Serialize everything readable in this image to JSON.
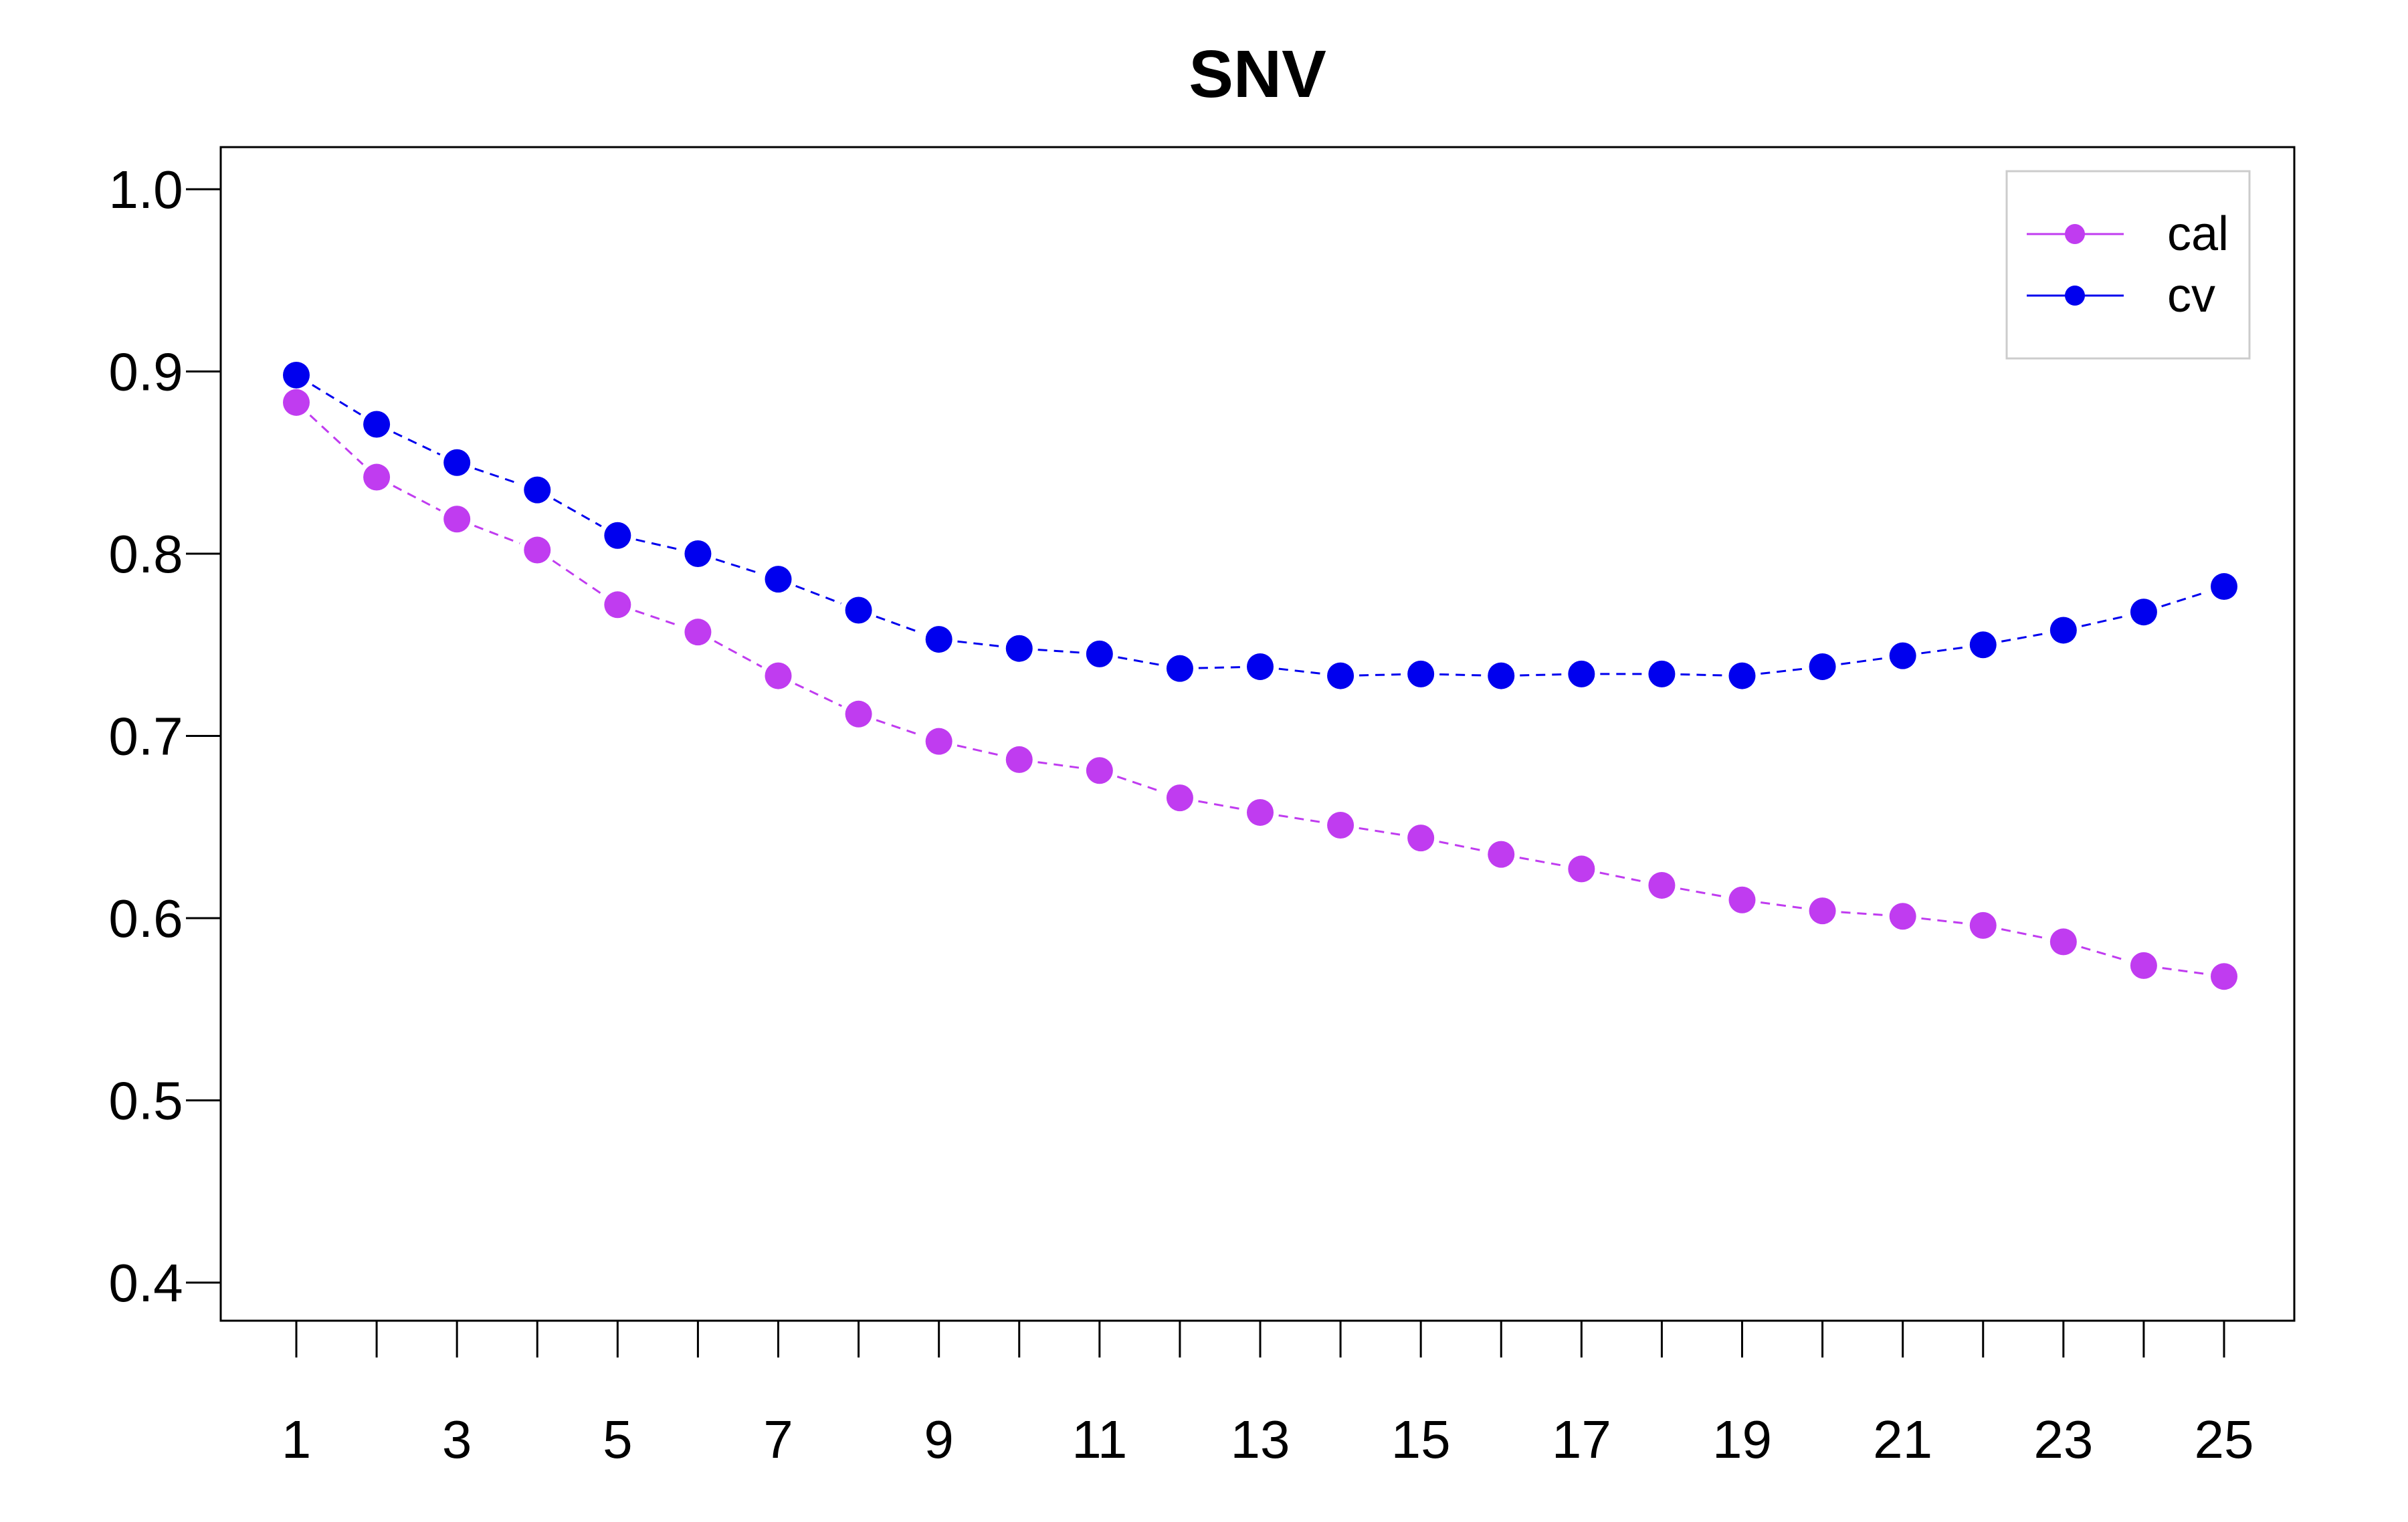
{
  "chart_data": {
    "type": "line",
    "title": "SNV",
    "xlabel": "",
    "ylabel": "",
    "x": [
      1,
      2,
      3,
      4,
      5,
      6,
      7,
      8,
      9,
      10,
      11,
      12,
      13,
      14,
      15,
      16,
      17,
      18,
      19,
      20,
      21,
      22,
      23,
      24,
      25
    ],
    "x_tick_labels": [
      "1",
      "3",
      "5",
      "7",
      "9",
      "11",
      "13",
      "15",
      "17",
      "19",
      "21",
      "23",
      "25"
    ],
    "y_tick_labels": [
      "0.4",
      "0.5",
      "0.6",
      "0.7",
      "0.8",
      "0.9",
      "1.0"
    ],
    "ylim": [
      0.4,
      1.0
    ],
    "xlim": [
      1,
      25
    ],
    "grid": false,
    "legend_position": "top-right",
    "series": [
      {
        "name": "cal",
        "color": "#c03cf0",
        "line_style": "dashed",
        "marker": "filled-circle",
        "values": [
          0.883,
          0.842,
          0.819,
          0.802,
          0.772,
          0.757,
          0.733,
          0.712,
          0.697,
          0.687,
          0.681,
          0.666,
          0.658,
          0.651,
          0.644,
          0.635,
          0.627,
          0.618,
          0.61,
          0.604,
          0.601,
          0.596,
          0.587,
          0.574,
          0.568
        ]
      },
      {
        "name": "cv",
        "color": "#0000ee",
        "line_style": "dashed",
        "marker": "filled-circle",
        "values": [
          0.898,
          0.871,
          0.85,
          0.835,
          0.81,
          0.8,
          0.786,
          0.769,
          0.753,
          0.748,
          0.745,
          0.737,
          0.738,
          0.733,
          0.734,
          0.733,
          0.734,
          0.734,
          0.733,
          0.738,
          0.744,
          0.75,
          0.758,
          0.768,
          0.782
        ]
      }
    ]
  }
}
